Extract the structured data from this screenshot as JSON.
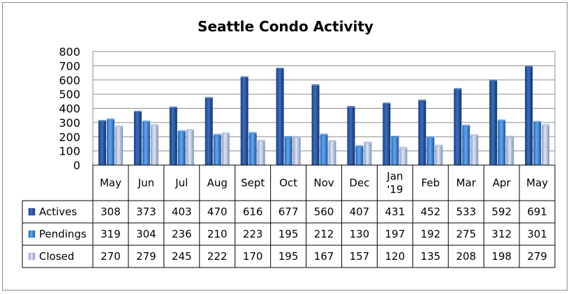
{
  "chart_data": {
    "type": "bar",
    "title": "Seattle Condo Activity",
    "xlabel": "",
    "ylabel": "",
    "ylim": [
      0,
      800
    ],
    "yticks": [
      "0",
      "100",
      "200",
      "300",
      "400",
      "500",
      "600",
      "700",
      "800"
    ],
    "grid": true,
    "legend": "data-table-left",
    "categories": [
      [
        "May"
      ],
      [
        "Jun"
      ],
      [
        "Jul"
      ],
      [
        "Aug"
      ],
      [
        "Sept"
      ],
      [
        "Oct"
      ],
      [
        "Nov"
      ],
      [
        "Dec"
      ],
      [
        "Jan",
        "'19"
      ],
      [
        "Feb"
      ],
      [
        "Mar"
      ],
      [
        "Apr"
      ],
      [
        "May"
      ]
    ],
    "series": [
      {
        "name": "Actives",
        "color": "#1f4e9c",
        "values": [
          308,
          373,
          403,
          470,
          616,
          677,
          560,
          407,
          431,
          452,
          533,
          592,
          691
        ]
      },
      {
        "name": "Pendings",
        "color": "#2f7fd6",
        "values": [
          319,
          304,
          236,
          210,
          223,
          195,
          212,
          130,
          197,
          192,
          275,
          312,
          301
        ]
      },
      {
        "name": "Closed",
        "color": "#a7b8d6",
        "values": [
          270,
          279,
          245,
          222,
          170,
          195,
          167,
          157,
          120,
          135,
          208,
          198,
          279
        ]
      }
    ]
  }
}
